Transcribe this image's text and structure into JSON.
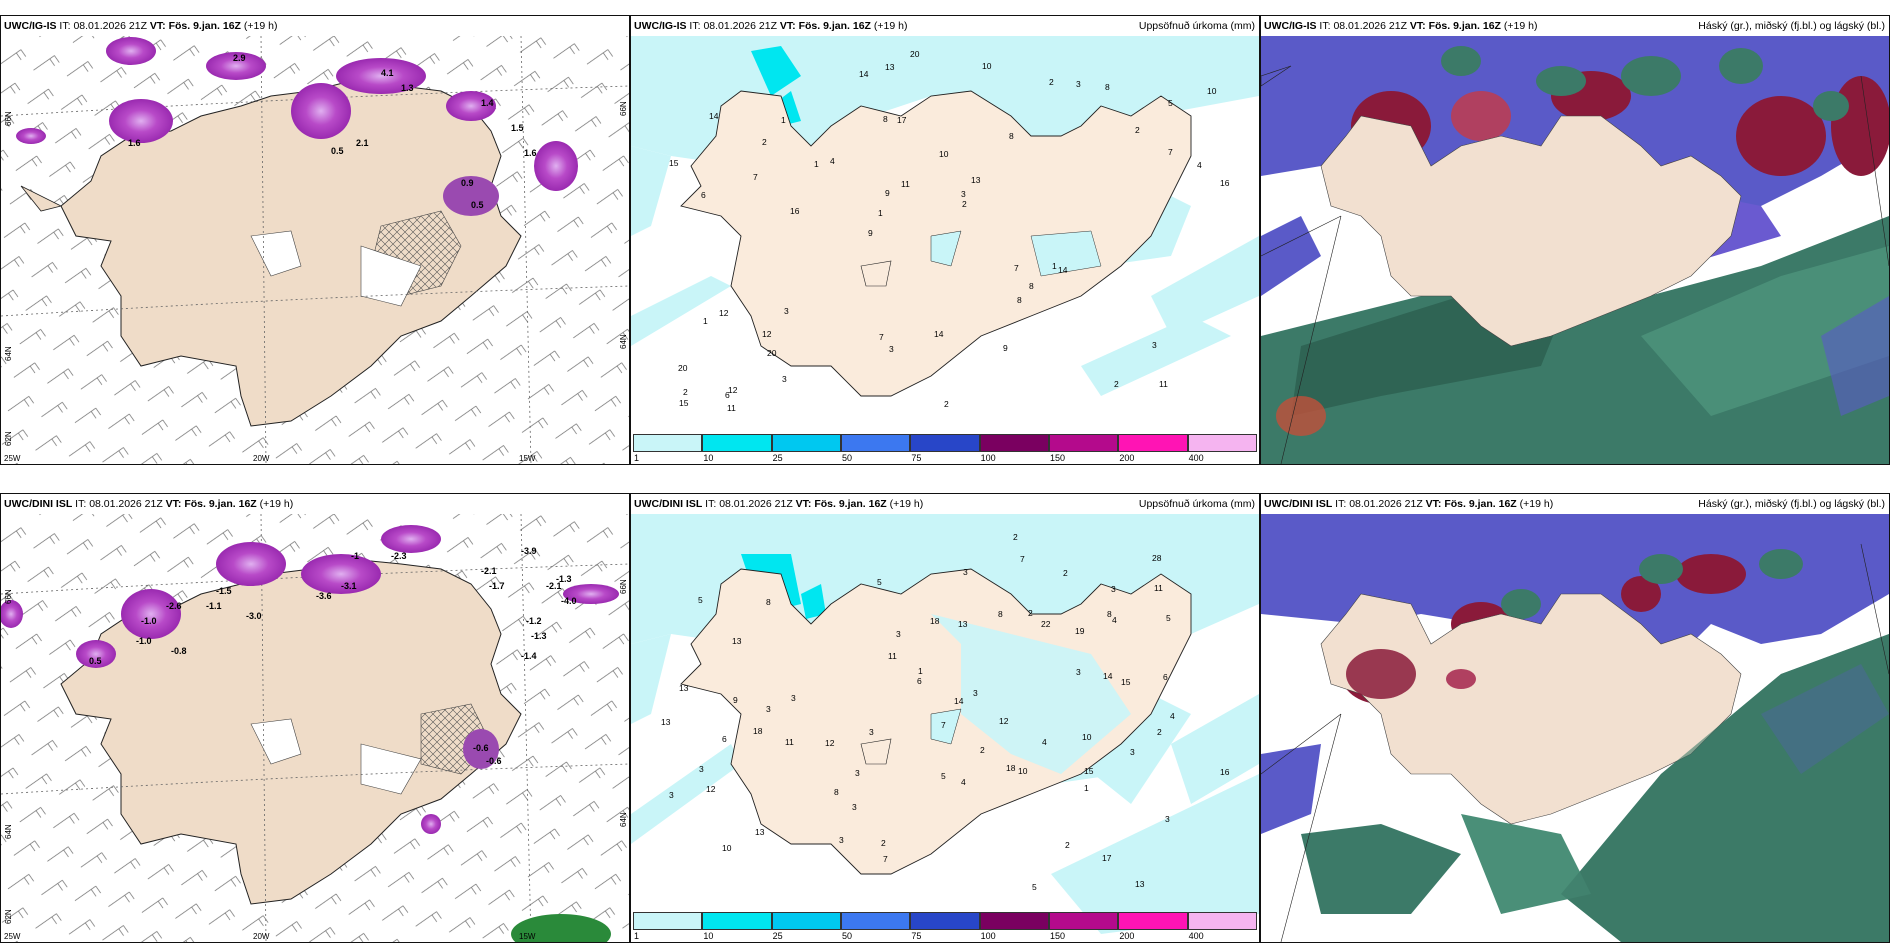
{
  "row_top": {
    "temp_panel": {
      "model": "UWC/IG-IS",
      "it_label": "IT:",
      "it_value": "08.01.2026 21Z",
      "vt_label": "VT:",
      "vt_value": "Fös. 9.jan. 16Z",
      "lead": "(+19 h)",
      "lat_labels": [
        "66N",
        "64N",
        "62N"
      ],
      "lon_labels": [
        "25W",
        "20W",
        "15W"
      ],
      "east_lat_labels": [
        "66N",
        "64N"
      ],
      "values": [
        "1.6",
        "2.9",
        "4.1",
        "1.3",
        "0.5",
        "2.1",
        "0.5",
        "0.9",
        "1.6",
        "1.5",
        "1.4"
      ]
    },
    "precip_panel": {
      "model": "UWC/IG-IS",
      "it_label": "IT:",
      "it_value": "08.01.2026 21Z",
      "vt_label": "VT:",
      "vt_value": "Fös. 9.jan. 16Z",
      "lead": "(+19 h)",
      "title": "Uppsöfnuð úrkoma (mm)",
      "values": [
        "11",
        "6",
        "5",
        "9",
        "8",
        "12",
        "8",
        "10",
        "12",
        "4",
        "20",
        "20",
        "17",
        "13",
        "14",
        "14",
        "13",
        "16",
        "7",
        "7",
        "1",
        "7",
        "9",
        "1",
        "2",
        "3",
        "2",
        "3",
        "1",
        "2",
        "1",
        "7",
        "8",
        "3",
        "4",
        "3",
        "2",
        "3",
        "2",
        "1",
        "2",
        "10",
        "8",
        "9",
        "12",
        "11",
        "15",
        "14",
        "8",
        "20",
        "16",
        "15",
        "2",
        "3",
        "6",
        "10",
        "14",
        "11"
      ],
      "colorbar": {
        "labels": [
          "1",
          "10",
          "25",
          "50",
          "75",
          "100",
          "150",
          "200",
          "400"
        ],
        "colors": [
          "#c9f5f8",
          "#00e6f0",
          "#00c8f0",
          "#3c78f0",
          "#2846c8",
          "#7a0060",
          "#b40a8c",
          "#ff14b4",
          "#f5b4f0"
        ]
      }
    },
    "cloud_panel": {
      "model": "UWC/IG-IS",
      "it_label": "IT:",
      "it_value": "08.01.2026 21Z",
      "vt_label": "VT:",
      "vt_value": "Fös. 9.jan. 16Z",
      "lead": "(+19 h)",
      "title": "Háský (gr.), miðský (fj.bl.) og lágský (bl.)"
    }
  },
  "row_bottom": {
    "temp_panel": {
      "model": "UWC/DINI ISL",
      "it_label": "IT:",
      "it_value": "08.01.2026 21Z",
      "vt_label": "VT:",
      "vt_value": "Fös. 9.jan. 16Z",
      "lead": "(+19 h)",
      "lat_labels": [
        "66N",
        "64N",
        "62N"
      ],
      "lon_labels": [
        "25W",
        "20W",
        "15W"
      ],
      "east_lat_labels": [
        "66N",
        "64N"
      ],
      "values": [
        "-2.3",
        "-3.9",
        "-1",
        "-2.1",
        "-1.7",
        "-2.1",
        "-4.0",
        "-1.3",
        "-1.3",
        "-1.0",
        "-2.6",
        "-3.1",
        "-1.5",
        "-1.1",
        "-3.6",
        "-3.0",
        "-1.0",
        "-0.8",
        "0.5",
        "-0.6",
        "-0.6",
        "-1.2",
        "-1.4"
      ]
    },
    "precip_panel": {
      "model": "UWC/DINI ISL",
      "it_label": "IT:",
      "it_value": "08.01.2026 21Z",
      "vt_label": "VT:",
      "vt_value": "Fös. 9.jan. 16Z",
      "lead": "(+19 h)",
      "title": "Uppsöfnuð úrkoma (mm)",
      "values": [
        "13",
        "18",
        "18",
        "5",
        "3",
        "13",
        "13",
        "12",
        "19",
        "18",
        "22",
        "17",
        "3",
        "5",
        "12",
        "12",
        "10",
        "14",
        "13",
        "10",
        "28",
        "13",
        "14",
        "16",
        "4",
        "9",
        "11",
        "7",
        "6",
        "11",
        "10",
        "6",
        "8",
        "2",
        "3",
        "3",
        "2",
        "2",
        "3",
        "5",
        "3",
        "4",
        "3",
        "2",
        "3",
        "3",
        "5",
        "7",
        "8",
        "5",
        "4",
        "6",
        "15",
        "15",
        "11",
        "13",
        "7",
        "1",
        "2",
        "3",
        "2",
        "8",
        "8",
        "3",
        "3",
        "3",
        "3",
        "3",
        "2",
        "4",
        "1"
      ],
      "colorbar": {
        "labels": [
          "1",
          "10",
          "25",
          "50",
          "75",
          "100",
          "150",
          "200",
          "400"
        ],
        "colors": [
          "#c9f5f8",
          "#00e6f0",
          "#00c8f0",
          "#3c78f0",
          "#2846c8",
          "#7a0060",
          "#b40a8c",
          "#ff14b4",
          "#f5b4f0"
        ]
      }
    },
    "cloud_panel": {
      "model": "UWC/DINI ISL",
      "it_label": "IT:",
      "it_value": "08.01.2026 21Z",
      "vt_label": "VT:",
      "vt_value": "Fös. 9.jan. 16Z",
      "lead": "(+19 h)",
      "title": "Háský (gr.), miðský (fj.bl.) og lágský (bl.)"
    }
  }
}
